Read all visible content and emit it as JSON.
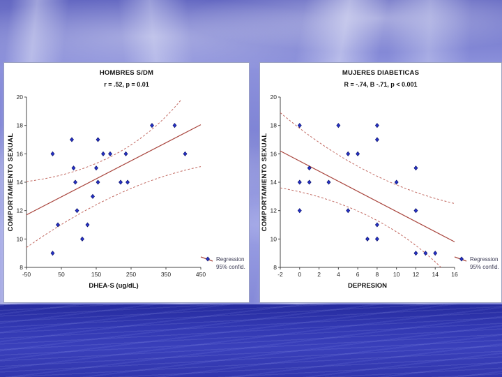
{
  "slide": {
    "background": {
      "sky_color": "#7c81d4",
      "cloud_color": "#eef0fc",
      "water_color": "#3238b2"
    }
  },
  "chart_data": [
    {
      "type": "scatter",
      "title": "HOMBRES S/DM",
      "subtitle": "r = .52, p = 0.01",
      "xlabel": "DHEA-S (ug/dL)",
      "ylabel": "COMPORTAMIENTO SEXUAL",
      "xlim": [
        -50,
        450
      ],
      "ylim": [
        8,
        20
      ],
      "xticks": [
        -50,
        50,
        150,
        250,
        350,
        450
      ],
      "yticks": [
        8,
        10,
        12,
        14,
        16,
        18,
        20
      ],
      "grid": false,
      "legend_position": "bottom-right-outside-axis",
      "points": [
        [
          25,
          16
        ],
        [
          80,
          17
        ],
        [
          155,
          17
        ],
        [
          170,
          16
        ],
        [
          190,
          16
        ],
        [
          235,
          16
        ],
        [
          405,
          16
        ],
        [
          310,
          18
        ],
        [
          375,
          18
        ],
        [
          85,
          15
        ],
        [
          150,
          15
        ],
        [
          90,
          14
        ],
        [
          155,
          14
        ],
        [
          220,
          14
        ],
        [
          240,
          14
        ],
        [
          140,
          13
        ],
        [
          95,
          12
        ],
        [
          40,
          11
        ],
        [
          125,
          11
        ],
        [
          110,
          10
        ],
        [
          25,
          9
        ]
      ],
      "regression": {
        "x": [
          -50,
          450
        ],
        "y": [
          11.7,
          18.05
        ]
      },
      "conf_upper": {
        "p0": [
          -50,
          14.05
        ],
        "c": [
          230,
          14.9
        ],
        "p1": [
          395,
          19.85
        ]
      },
      "conf_lower": {
        "p0": [
          -50,
          9.4
        ],
        "c": [
          210,
          13.9
        ],
        "p1": [
          450,
          15.1
        ]
      },
      "legend": {
        "line1": "Regression",
        "line2": "95% confid."
      },
      "colors": {
        "marker": "#2531c9",
        "marker_edge": "#0e1468",
        "regression": "#a8443c",
        "confidence": "#c26a62"
      }
    },
    {
      "type": "scatter",
      "title": "MUJERES DIABETICAS",
      "subtitle": "R = -.74, B -.71, p < 0.001",
      "xlabel": "DEPRESION",
      "ylabel": "COMPORTAMIENTO SEXUAL",
      "xlim": [
        -2,
        16
      ],
      "ylim": [
        8,
        20
      ],
      "xticks": [
        -2,
        0,
        2,
        4,
        6,
        8,
        10,
        12,
        14,
        16
      ],
      "yticks": [
        8,
        10,
        12,
        14,
        16,
        18,
        20
      ],
      "grid": false,
      "legend_position": "bottom-right-outside-axis",
      "points": [
        [
          0,
          18
        ],
        [
          4,
          18
        ],
        [
          8,
          18
        ],
        [
          8,
          17
        ],
        [
          5,
          16
        ],
        [
          6,
          16
        ],
        [
          1,
          15
        ],
        [
          12,
          15
        ],
        [
          0,
          14
        ],
        [
          1,
          14
        ],
        [
          3,
          14
        ],
        [
          10,
          14
        ],
        [
          0,
          12
        ],
        [
          5,
          12
        ],
        [
          12,
          12
        ],
        [
          8,
          11
        ],
        [
          7,
          10
        ],
        [
          8,
          10
        ],
        [
          12,
          9
        ],
        [
          13,
          9
        ],
        [
          14,
          9
        ]
      ],
      "regression": {
        "x": [
          -2,
          16
        ],
        "y": [
          16.2,
          9.8
        ]
      },
      "conf_upper": {
        "p0": [
          -2,
          18.9
        ],
        "c": [
          6.5,
          14.0
        ],
        "p1": [
          16,
          12.5
        ]
      },
      "conf_lower": {
        "p0": [
          -2,
          13.6
        ],
        "c": [
          8,
          12.4
        ],
        "p1": [
          14.6,
          8.0
        ]
      },
      "legend": {
        "line1": "Regression",
        "line2": "95% confid."
      },
      "colors": {
        "marker": "#2531c9",
        "marker_edge": "#0e1468",
        "regression": "#a8443c",
        "confidence": "#c26a62"
      }
    }
  ]
}
